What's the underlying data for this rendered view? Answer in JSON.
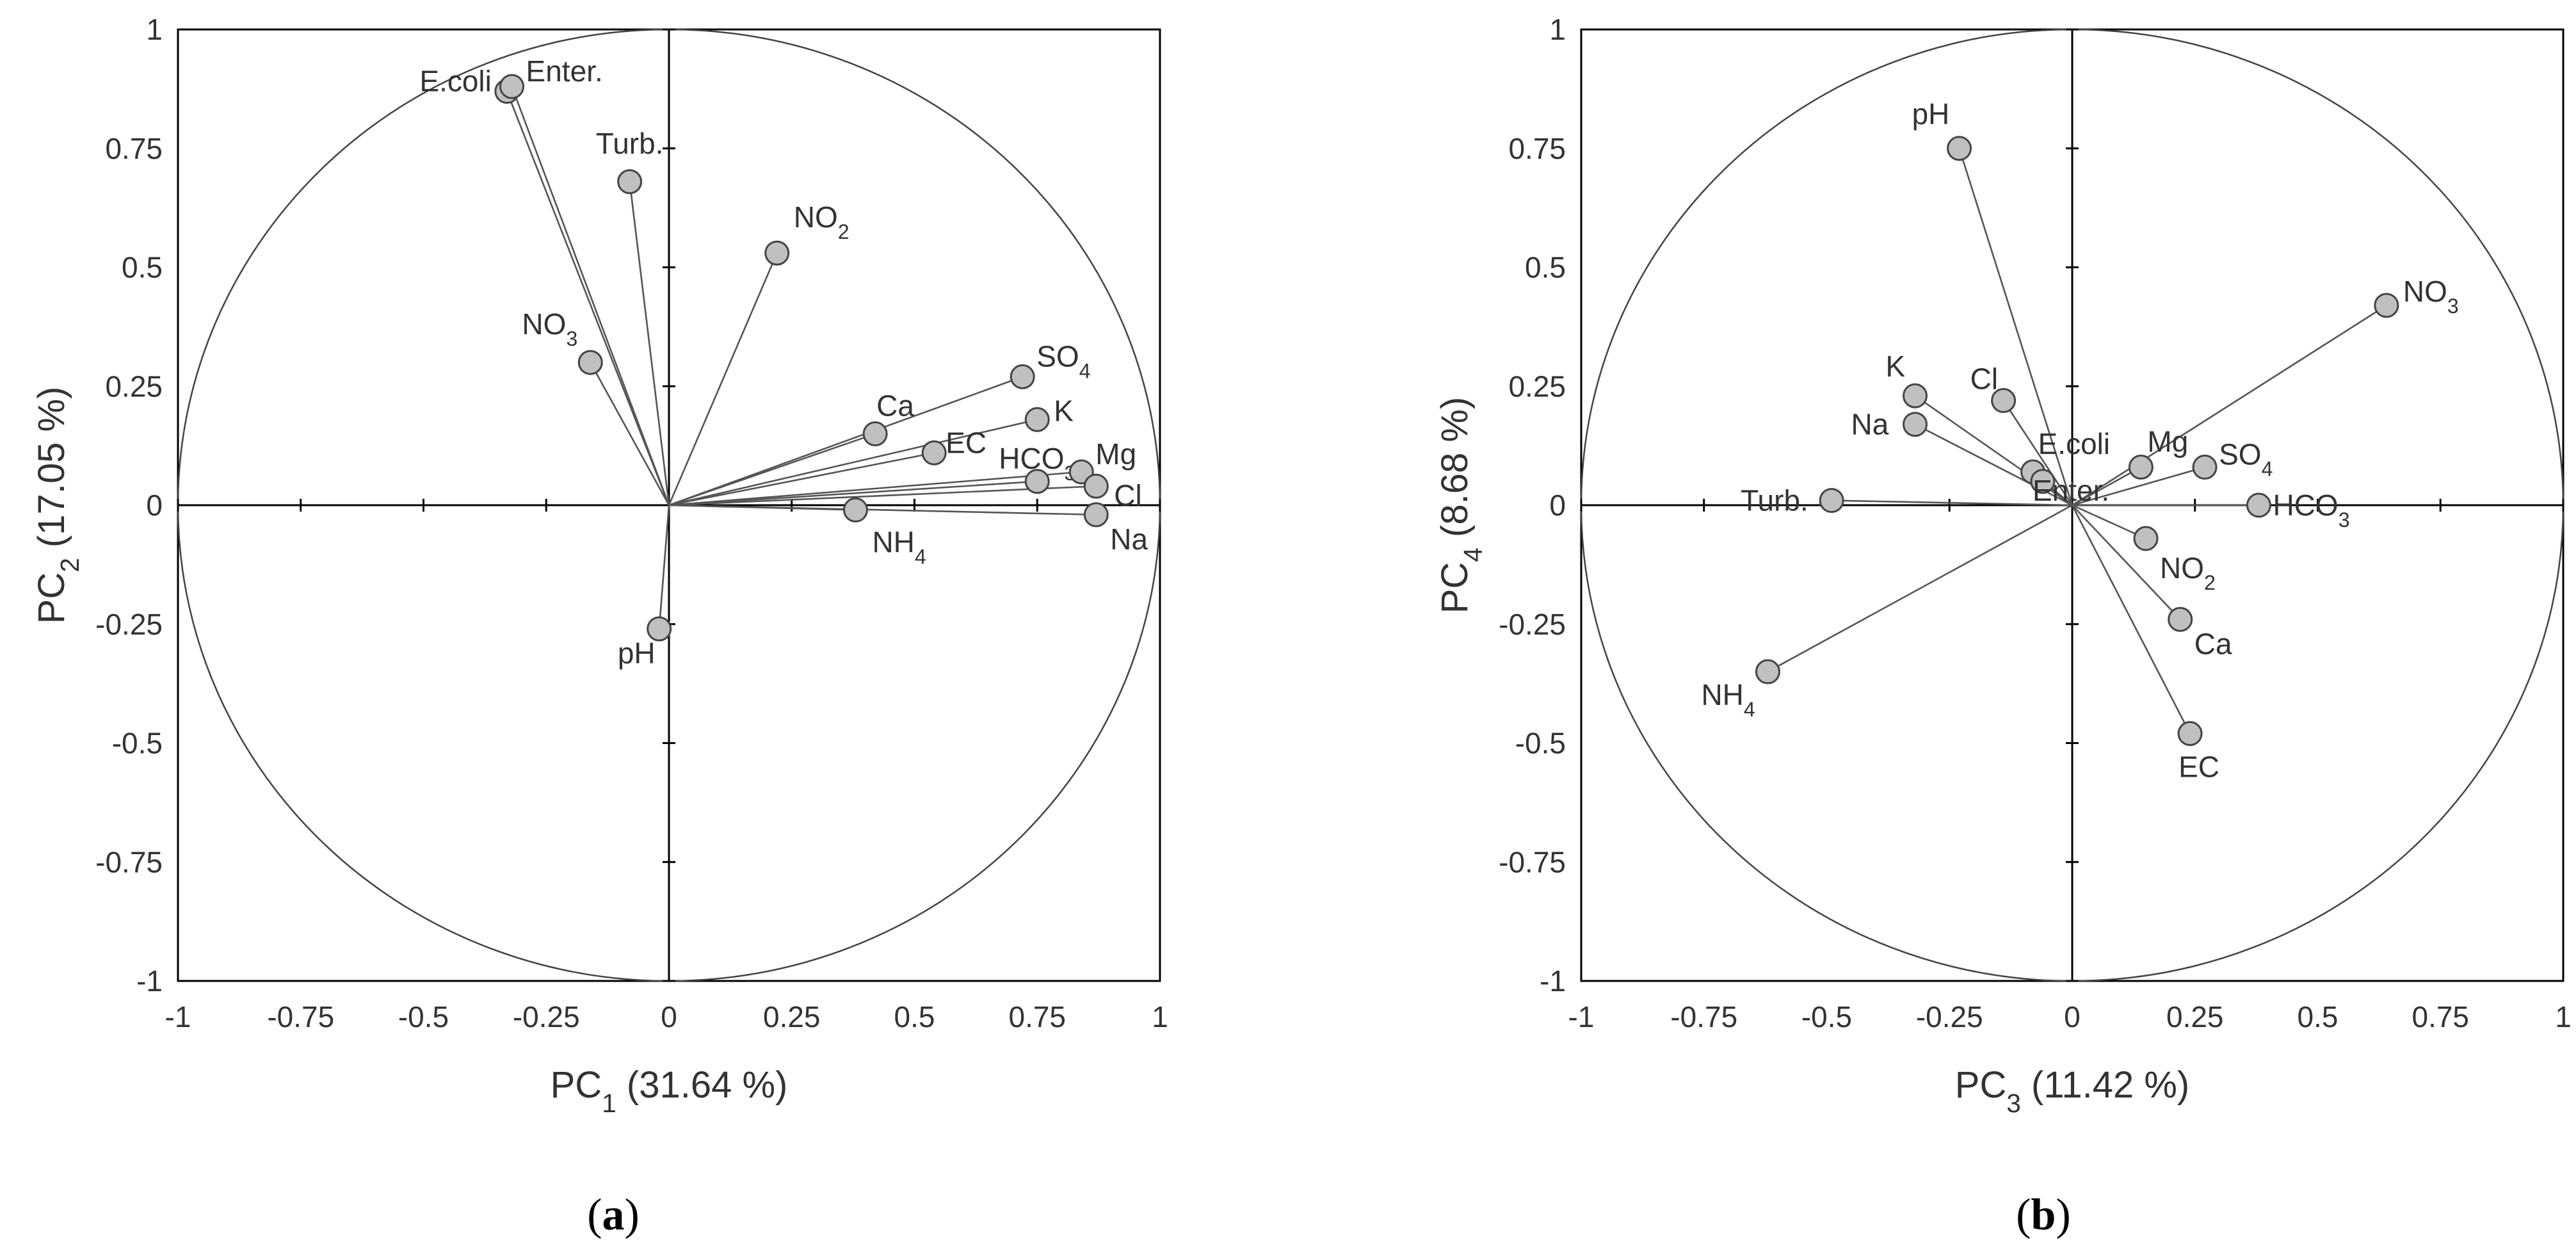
{
  "chart_data": [
    {
      "type": "scatter",
      "panel": "(a)",
      "panel_letter": "a",
      "xlabel": "PC1 (31.64 %)",
      "xlabel_parts": {
        "base": "PC",
        "sub": "1",
        "rest": " (31.64 %)"
      },
      "ylabel": "PC2 (17.05 %)",
      "ylabel_parts": {
        "base": "PC",
        "sub": "2",
        "rest": " (17.05 %)"
      },
      "xlim": [
        -1,
        1
      ],
      "ylim": [
        -1,
        1
      ],
      "xticks": [
        "-1",
        "-0.75",
        "-0.5",
        "-0.25",
        "0",
        "0.25",
        "0.5",
        "0.75",
        "1"
      ],
      "yticks": [
        "1",
        "0.75",
        "0.5",
        "0.25",
        "0",
        "-0.25",
        "-0.5",
        "-0.75",
        "-1"
      ],
      "unit_circle": true,
      "points": [
        {
          "label": "E.coli",
          "base": "E.coli",
          "sub": "",
          "x": -0.33,
          "y": 0.87
        },
        {
          "label": "Enter.",
          "base": "Enter.",
          "sub": "",
          "x": -0.32,
          "y": 0.88
        },
        {
          "label": "Turb.",
          "base": "Turb.",
          "sub": "",
          "x": -0.08,
          "y": 0.68
        },
        {
          "label": "NO2",
          "base": "NO",
          "sub": "2",
          "x": 0.22,
          "y": 0.53
        },
        {
          "label": "NO3",
          "base": "NO",
          "sub": "3",
          "x": -0.16,
          "y": 0.3
        },
        {
          "label": "SO4",
          "base": "SO",
          "sub": "4",
          "x": 0.72,
          "y": 0.27
        },
        {
          "label": "Ca",
          "base": "Ca",
          "sub": "",
          "x": 0.42,
          "y": 0.15
        },
        {
          "label": "K",
          "base": "K",
          "sub": "",
          "x": 0.75,
          "y": 0.18
        },
        {
          "label": "EC",
          "base": "EC",
          "sub": "",
          "x": 0.54,
          "y": 0.11
        },
        {
          "label": "HCO3",
          "base": "HCO",
          "sub": "3",
          "x": 0.75,
          "y": 0.05
        },
        {
          "label": "Mg",
          "base": "Mg",
          "sub": "",
          "x": 0.84,
          "y": 0.07
        },
        {
          "label": "Cl",
          "base": "Cl",
          "sub": "",
          "x": 0.87,
          "y": 0.04
        },
        {
          "label": "NH4",
          "base": "NH",
          "sub": "4",
          "x": 0.38,
          "y": -0.01
        },
        {
          "label": "Na",
          "base": "Na",
          "sub": "",
          "x": 0.87,
          "y": -0.02
        },
        {
          "label": "pH",
          "base": "pH",
          "sub": "",
          "x": -0.02,
          "y": -0.26
        }
      ]
    },
    {
      "type": "scatter",
      "panel": "(b)",
      "panel_letter": "b",
      "xlabel": "PC3 (11.42 %)",
      "xlabel_parts": {
        "base": "PC",
        "sub": "3",
        "rest": " (11.42 %)"
      },
      "ylabel": "PC4 (8.68 %)",
      "ylabel_parts": {
        "base": "PC",
        "sub": "4",
        "rest": " (8.68 %)"
      },
      "xlim": [
        -1,
        1
      ],
      "ylim": [
        -1,
        1
      ],
      "xticks": [
        "-1",
        "-0.75",
        "-0.5",
        "-0.25",
        "0",
        "0.25",
        "0.5",
        "0.75",
        "1"
      ],
      "yticks": [
        "1",
        "0.75",
        "0.5",
        "0.25",
        "0",
        "-0.25",
        "-0.5",
        "-0.75",
        "-1"
      ],
      "unit_circle": true,
      "points": [
        {
          "label": "pH",
          "base": "pH",
          "sub": "",
          "x": -0.23,
          "y": 0.75
        },
        {
          "label": "NO3",
          "base": "NO",
          "sub": "3",
          "x": 0.64,
          "y": 0.42
        },
        {
          "label": "K",
          "base": "K",
          "sub": "",
          "x": -0.32,
          "y": 0.23
        },
        {
          "label": "Cl",
          "base": "Cl",
          "sub": "",
          "x": -0.14,
          "y": 0.22
        },
        {
          "label": "Na",
          "base": "Na",
          "sub": "",
          "x": -0.32,
          "y": 0.17
        },
        {
          "label": "E.coli",
          "base": "E.coli",
          "sub": "",
          "x": -0.08,
          "y": 0.07
        },
        {
          "label": "Enter.",
          "base": "Enter.",
          "sub": "",
          "x": -0.06,
          "y": 0.05
        },
        {
          "label": "Mg",
          "base": "Mg",
          "sub": "",
          "x": 0.14,
          "y": 0.08
        },
        {
          "label": "SO4",
          "base": "SO",
          "sub": "4",
          "x": 0.27,
          "y": 0.08
        },
        {
          "label": "Turb.",
          "base": "Turb.",
          "sub": "",
          "x": -0.49,
          "y": 0.01
        },
        {
          "label": "HCO3",
          "base": "HCO",
          "sub": "3",
          "x": 0.38,
          "y": 0.0
        },
        {
          "label": "NO2",
          "base": "NO",
          "sub": "2",
          "x": 0.15,
          "y": -0.07
        },
        {
          "label": "Ca",
          "base": "Ca",
          "sub": "",
          "x": 0.22,
          "y": -0.24
        },
        {
          "label": "NH4",
          "base": "NH",
          "sub": "4",
          "x": -0.62,
          "y": -0.35
        },
        {
          "label": "EC",
          "base": "EC",
          "sub": "",
          "x": 0.24,
          "y": -0.48
        }
      ]
    }
  ]
}
